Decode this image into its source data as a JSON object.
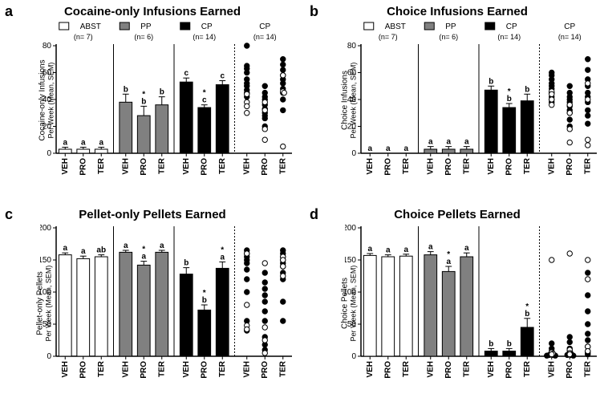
{
  "global": {
    "background_color": "#ffffff",
    "axis_color": "#000000",
    "tick_fontsize": 10,
    "xtick_fontsize": 10,
    "title_fontsize": 15,
    "panel_label_fontsize": 18,
    "annotation_fontsize": 10,
    "legend_fontsize": 10,
    "groups": [
      {
        "key": "ABST",
        "label": "ABST",
        "n_label": "(n= 7)",
        "fill": "#ffffff",
        "stroke": "#000000"
      },
      {
        "key": "PP",
        "label": "PP",
        "n_label": "(n= 6)",
        "fill": "#808080",
        "stroke": "#000000"
      },
      {
        "key": "CP",
        "label": "CP",
        "n_label": "(n= 14)",
        "fill": "#000000",
        "stroke": "#000000"
      },
      {
        "key": "CP_scatter",
        "label": "CP",
        "n_label": "(n= 14)",
        "scatter": true
      }
    ],
    "treatments": [
      "VEH",
      "PRO",
      "TER"
    ],
    "scatter_marker": {
      "filled_fill": "#000000",
      "open_fill": "#ffffff",
      "stroke": "#000000",
      "radius": 3.2
    },
    "bar_width_rel": 0.7,
    "error_cap_rel": 0.5
  },
  "panels": {
    "a": {
      "label": "a",
      "title": "Cocaine-only Infusions Earned",
      "ylabel_line1": "Cocaine-only Infusions",
      "ylabel_line2": "Per Week (Mean, SEM)",
      "ylim": [
        0,
        80
      ],
      "ytick_step": 20,
      "show_legend": true,
      "show_n": true,
      "bars": {
        "ABST": [
          {
            "mean": 3,
            "sem": 1.5,
            "ann": [
              "a"
            ]
          },
          {
            "mean": 3,
            "sem": 1.5,
            "ann": [
              "a"
            ]
          },
          {
            "mean": 3,
            "sem": 1.5,
            "ann": [
              "a"
            ]
          }
        ],
        "PP": [
          {
            "mean": 38,
            "sem": 6,
            "ann": [
              "b"
            ]
          },
          {
            "mean": 28,
            "sem": 7,
            "ann": [
              "*",
              "b"
            ]
          },
          {
            "mean": 36,
            "sem": 6,
            "ann": [
              "b"
            ]
          }
        ],
        "CP": [
          {
            "mean": 53,
            "sem": 3,
            "ann": [
              "c"
            ]
          },
          {
            "mean": 34,
            "sem": 2,
            "ann": [
              "*",
              "c"
            ]
          },
          {
            "mean": 51,
            "sem": 3,
            "ann": [
              "c"
            ]
          }
        ]
      },
      "scatter": {
        "VEH": {
          "filled": [
            80,
            65,
            63,
            60,
            55,
            52,
            50,
            47,
            45,
            42
          ],
          "open": [
            44,
            38,
            35,
            30
          ]
        },
        "PRO": {
          "filled": [
            50,
            45,
            42,
            40,
            36,
            33,
            30,
            28,
            26,
            20
          ],
          "open": [
            38,
            32,
            18,
            10
          ]
        },
        "TER": {
          "filled": [
            70,
            66,
            62,
            58,
            55,
            52,
            48,
            45,
            40,
            32
          ],
          "open": [
            58,
            46,
            45,
            5
          ]
        }
      }
    },
    "b": {
      "label": "b",
      "title": "Choice Infusions Earned",
      "ylabel_line1": "Choice Infusions",
      "ylabel_line2": "Per Week (Mean, SEM)",
      "ylim": [
        0,
        80
      ],
      "ytick_step": 20,
      "show_legend": true,
      "show_n": true,
      "bars": {
        "ABST": [
          {
            "mean": 0,
            "sem": 0,
            "ann": [
              "a"
            ]
          },
          {
            "mean": 0,
            "sem": 0,
            "ann": [
              "a"
            ]
          },
          {
            "mean": 0,
            "sem": 0,
            "ann": [
              "a"
            ]
          }
        ],
        "PP": [
          {
            "mean": 3,
            "sem": 2,
            "ann": [
              "a"
            ]
          },
          {
            "mean": 3,
            "sem": 2,
            "ann": [
              "a"
            ]
          },
          {
            "mean": 3,
            "sem": 2,
            "ann": [
              "a"
            ]
          }
        ],
        "CP": [
          {
            "mean": 47,
            "sem": 3,
            "ann": [
              "b"
            ]
          },
          {
            "mean": 34,
            "sem": 3,
            "ann": [
              "*",
              "b"
            ]
          },
          {
            "mean": 39,
            "sem": 5,
            "ann": [
              "b"
            ]
          }
        ]
      },
      "scatter": {
        "VEH": {
          "filled": [
            60,
            58,
            55,
            52,
            50,
            48,
            45,
            42,
            40,
            38
          ],
          "open": [
            46,
            44,
            40,
            36
          ]
        },
        "PRO": {
          "filled": [
            50,
            45,
            42,
            40,
            38,
            35,
            32,
            30,
            25,
            20
          ],
          "open": [
            36,
            30,
            18,
            8
          ]
        },
        "TER": {
          "filled": [
            70,
            62,
            55,
            50,
            45,
            42,
            38,
            32,
            28,
            22
          ],
          "open": [
            52,
            40,
            10,
            6
          ]
        }
      }
    },
    "c": {
      "label": "c",
      "title": "Pellet-only Pellets Earned",
      "ylabel_line1": "Pellet-only Pellets",
      "ylabel_line2": "Per Week (Mean, SEM)",
      "ylim": [
        0,
        200
      ],
      "ytick_step": 50,
      "show_legend": false,
      "show_n": false,
      "bars": {
        "ABST": [
          {
            "mean": 158,
            "sem": 3,
            "ann": [
              "a"
            ]
          },
          {
            "mean": 152,
            "sem": 4,
            "ann": [
              "a"
            ]
          },
          {
            "mean": 155,
            "sem": 3,
            "ann": [
              "ab"
            ]
          }
        ],
        "PP": [
          {
            "mean": 162,
            "sem": 3,
            "ann": [
              "a"
            ]
          },
          {
            "mean": 142,
            "sem": 6,
            "ann": [
              "*",
              "a"
            ]
          },
          {
            "mean": 162,
            "sem": 3,
            "ann": [
              "a"
            ]
          }
        ],
        "CP": [
          {
            "mean": 128,
            "sem": 10,
            "ann": [
              "b"
            ]
          },
          {
            "mean": 72,
            "sem": 8,
            "ann": [
              "*",
              "b"
            ]
          },
          {
            "mean": 137,
            "sem": 10,
            "ann": [
              "*",
              "a"
            ]
          }
        ]
      },
      "scatter": {
        "VEH": {
          "filled": [
            165,
            160,
            155,
            150,
            145,
            135,
            120,
            100,
            55,
            40
          ],
          "open": [
            160,
            80,
            48,
            42
          ]
        },
        "PRO": {
          "filled": [
            130,
            115,
            105,
            95,
            85,
            70,
            55,
            30,
            18,
            10
          ],
          "open": [
            145,
            45,
            25,
            5
          ]
        },
        "TER": {
          "filled": [
            165,
            160,
            155,
            150,
            145,
            140,
            130,
            120,
            85,
            55
          ],
          "open": [
            155,
            150,
            140,
            125
          ]
        }
      }
    },
    "d": {
      "label": "d",
      "title": "Choice Pellets Earned",
      "ylabel_line1": "Choice Pellets",
      "ylabel_line2": "Per Week (Mean, SEM)",
      "ylim": [
        0,
        200
      ],
      "ytick_step": 50,
      "show_legend": false,
      "show_n": false,
      "bars": {
        "ABST": [
          {
            "mean": 157,
            "sem": 3,
            "ann": [
              "a"
            ]
          },
          {
            "mean": 155,
            "sem": 3,
            "ann": [
              "a"
            ]
          },
          {
            "mean": 156,
            "sem": 3,
            "ann": [
              "a"
            ]
          }
        ],
        "PP": [
          {
            "mean": 158,
            "sem": 5,
            "ann": [
              "a"
            ]
          },
          {
            "mean": 132,
            "sem": 8,
            "ann": [
              "*",
              "a"
            ]
          },
          {
            "mean": 155,
            "sem": 6,
            "ann": [
              "a"
            ]
          }
        ],
        "CP": [
          {
            "mean": 8,
            "sem": 4,
            "ann": [
              "b"
            ]
          },
          {
            "mean": 8,
            "sem": 4,
            "ann": [
              "b"
            ]
          },
          {
            "mean": 45,
            "sem": 14,
            "ann": [
              "*",
              "b"
            ]
          }
        ]
      },
      "scatter": {
        "VEH": {
          "filled": [
            20,
            12,
            8,
            5,
            4,
            3,
            2,
            2,
            1,
            1
          ],
          "open": [
            150,
            6,
            4,
            3
          ]
        },
        "PRO": {
          "filled": [
            30,
            22,
            12,
            8,
            5,
            4,
            3,
            2,
            2,
            1
          ],
          "open": [
            160,
            10,
            5,
            3
          ]
        },
        "TER": {
          "filled": [
            130,
            95,
            70,
            50,
            35,
            25,
            15,
            8,
            5,
            3
          ],
          "open": [
            150,
            120,
            15,
            8
          ]
        }
      }
    }
  }
}
